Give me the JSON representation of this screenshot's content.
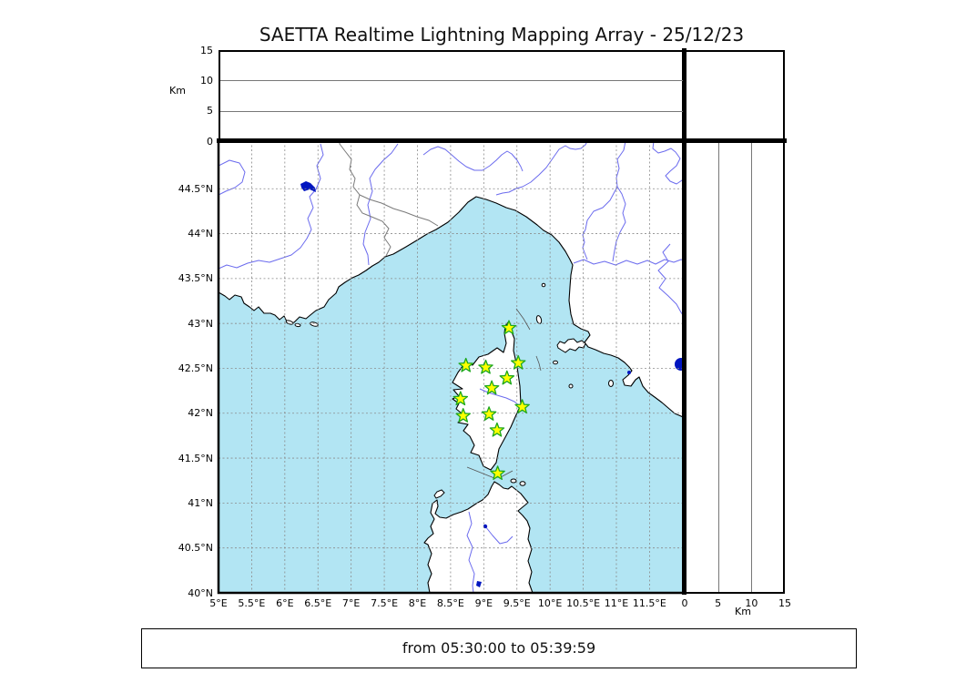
{
  "chart_data": {
    "type": "scatter",
    "title": "SAETTA Realtime Lightning Mapping Array - 25/12/23",
    "time_window": "from 05:30:00 to 05:39:59",
    "layout": "three-panel lightning mapping array display: altitude vs longitude (top), lat/lon map (center), altitude vs latitude (right); grid on (dashed graticule every 0.5 degree)",
    "map_extent": {
      "lon_min": 5.0,
      "lon_max": 12.03,
      "lat_min": 40.0,
      "lat_max": 45.03
    },
    "altitude_axis": {
      "unit": "Km",
      "min": 0,
      "max": 15,
      "ticks": [
        0,
        5,
        10,
        15
      ],
      "gridlines_km": [
        5,
        10
      ]
    },
    "lat_ticks": [
      {
        "value": 44.5,
        "label": "44.5°N"
      },
      {
        "value": 44.0,
        "label": "44°N"
      },
      {
        "value": 43.5,
        "label": "43.5°N"
      },
      {
        "value": 43.0,
        "label": "43°N"
      },
      {
        "value": 42.5,
        "label": "42.5°N"
      },
      {
        "value": 42.0,
        "label": "42°N"
      },
      {
        "value": 41.5,
        "label": "41.5°N"
      },
      {
        "value": 41.0,
        "label": "41°N"
      },
      {
        "value": 40.5,
        "label": "40.5°N"
      },
      {
        "value": 40.0,
        "label": "40°N"
      }
    ],
    "lon_ticks": [
      {
        "value": 5.0,
        "label": "5°E"
      },
      {
        "value": 5.5,
        "label": "5.5°E"
      },
      {
        "value": 6.0,
        "label": "6°E"
      },
      {
        "value": 6.5,
        "label": "6.5°E"
      },
      {
        "value": 7.0,
        "label": "7°E"
      },
      {
        "value": 7.5,
        "label": "7.5°E"
      },
      {
        "value": 8.0,
        "label": "8°E"
      },
      {
        "value": 8.5,
        "label": "8.5°E"
      },
      {
        "value": 9.0,
        "label": "9°E"
      },
      {
        "value": 9.5,
        "label": "9.5°E"
      },
      {
        "value": 10.0,
        "label": "10°E"
      },
      {
        "value": 10.5,
        "label": "10.5°E"
      },
      {
        "value": 11.0,
        "label": "11°E"
      },
      {
        "value": 11.5,
        "label": "11.5°E"
      }
    ],
    "stations": [
      {
        "lon": 9.38,
        "lat": 42.95
      },
      {
        "lon": 8.73,
        "lat": 42.53
      },
      {
        "lon": 9.03,
        "lat": 42.51
      },
      {
        "lon": 9.52,
        "lat": 42.56
      },
      {
        "lon": 9.35,
        "lat": 42.39
      },
      {
        "lon": 9.12,
        "lat": 42.28
      },
      {
        "lon": 8.65,
        "lat": 42.16
      },
      {
        "lon": 9.58,
        "lat": 42.07
      },
      {
        "lon": 9.08,
        "lat": 41.99
      },
      {
        "lon": 8.69,
        "lat": 41.97
      },
      {
        "lon": 9.2,
        "lat": 41.81
      },
      {
        "lon": 9.21,
        "lat": 41.33
      }
    ],
    "lightning_points": []
  },
  "colors": {
    "sea": "#b2e5f3",
    "land": "#ffffff",
    "river": "#6b6bee",
    "lake": "#0015c0",
    "grid": "#8a8a8a",
    "star_fill": "#ffff00",
    "star_stroke": "#1da81d"
  }
}
